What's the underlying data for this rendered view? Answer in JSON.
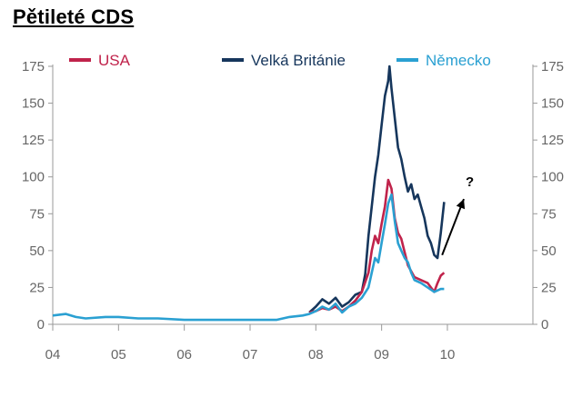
{
  "title": "Pětileté CDS",
  "colors": {
    "usa": "#c0234b",
    "uk": "#16365c",
    "de": "#2aa0d2",
    "axis": "#999999",
    "text": "#666666",
    "annotation": "#000000"
  },
  "chart_data": {
    "type": "line",
    "title": "Pětileté CDS",
    "xlabel": "",
    "ylabel": "",
    "xlim": [
      2004,
      2011.3
    ],
    "ylim": [
      0,
      175
    ],
    "x_ticks": [
      2004,
      2005,
      2006,
      2007,
      2008,
      2009,
      2010
    ],
    "x_tick_labels": [
      "04",
      "05",
      "06",
      "07",
      "08",
      "09",
      "10"
    ],
    "y_ticks": [
      0,
      25,
      50,
      75,
      100,
      125,
      150,
      175
    ],
    "y_tick_labels": [
      "0",
      "25",
      "50",
      "75",
      "100",
      "125",
      "150",
      "175"
    ],
    "grid": false,
    "legend_position": "top",
    "series": [
      {
        "name": "USA",
        "color": "#c0234b",
        "x": [
          2007.9,
          2008.0,
          2008.1,
          2008.2,
          2008.3,
          2008.4,
          2008.5,
          2008.6,
          2008.7,
          2008.8,
          2008.85,
          2008.9,
          2008.95,
          2009.0,
          2009.05,
          2009.1,
          2009.15,
          2009.2,
          2009.25,
          2009.3,
          2009.4,
          2009.5,
          2009.6,
          2009.7,
          2009.8,
          2009.85,
          2009.9,
          2009.95
        ],
        "y": [
          8,
          9,
          11,
          10,
          12,
          9,
          12,
          16,
          22,
          35,
          50,
          60,
          55,
          68,
          80,
          98,
          92,
          72,
          62,
          58,
          40,
          32,
          30,
          28,
          22,
          28,
          33,
          35
        ]
      },
      {
        "name": "Velká Británie",
        "color": "#16365c",
        "x": [
          2007.9,
          2008.0,
          2008.1,
          2008.2,
          2008.3,
          2008.4,
          2008.5,
          2008.6,
          2008.7,
          2008.75,
          2008.8,
          2008.85,
          2008.9,
          2008.95,
          2009.0,
          2009.05,
          2009.1,
          2009.12,
          2009.15,
          2009.2,
          2009.25,
          2009.3,
          2009.35,
          2009.4,
          2009.45,
          2009.5,
          2009.55,
          2009.6,
          2009.65,
          2009.7,
          2009.75,
          2009.8,
          2009.85,
          2009.9,
          2009.95
        ],
        "y": [
          8,
          12,
          17,
          14,
          18,
          12,
          15,
          20,
          22,
          34,
          60,
          80,
          100,
          115,
          135,
          155,
          165,
          175,
          160,
          140,
          120,
          112,
          100,
          90,
          95,
          85,
          88,
          80,
          72,
          60,
          55,
          47,
          45,
          62,
          83
        ]
      },
      {
        "name": "Německo",
        "color": "#2aa0d2",
        "x": [
          2004.0,
          2004.2,
          2004.35,
          2004.5,
          2004.8,
          2005.0,
          2005.3,
          2005.6,
          2006.0,
          2006.5,
          2007.0,
          2007.4,
          2007.6,
          2007.8,
          2007.9,
          2008.0,
          2008.1,
          2008.2,
          2008.3,
          2008.4,
          2008.5,
          2008.6,
          2008.7,
          2008.8,
          2008.85,
          2008.9,
          2008.95,
          2009.0,
          2009.05,
          2009.1,
          2009.15,
          2009.2,
          2009.25,
          2009.3,
          2009.35,
          2009.4,
          2009.45,
          2009.5,
          2009.6,
          2009.7,
          2009.8,
          2009.9,
          2009.95
        ],
        "y": [
          6,
          7,
          5,
          4,
          5,
          5,
          4,
          4,
          3,
          3,
          3,
          3,
          5,
          6,
          7,
          9,
          12,
          10,
          14,
          8,
          12,
          14,
          18,
          25,
          35,
          45,
          42,
          55,
          68,
          82,
          88,
          70,
          55,
          50,
          45,
          42,
          35,
          30,
          28,
          25,
          22,
          24,
          24
        ]
      }
    ],
    "annotations": [
      {
        "type": "arrow",
        "x1": 2009.92,
        "y1": 47,
        "x2": 2010.25,
        "y2": 85,
        "label": "?"
      }
    ]
  }
}
